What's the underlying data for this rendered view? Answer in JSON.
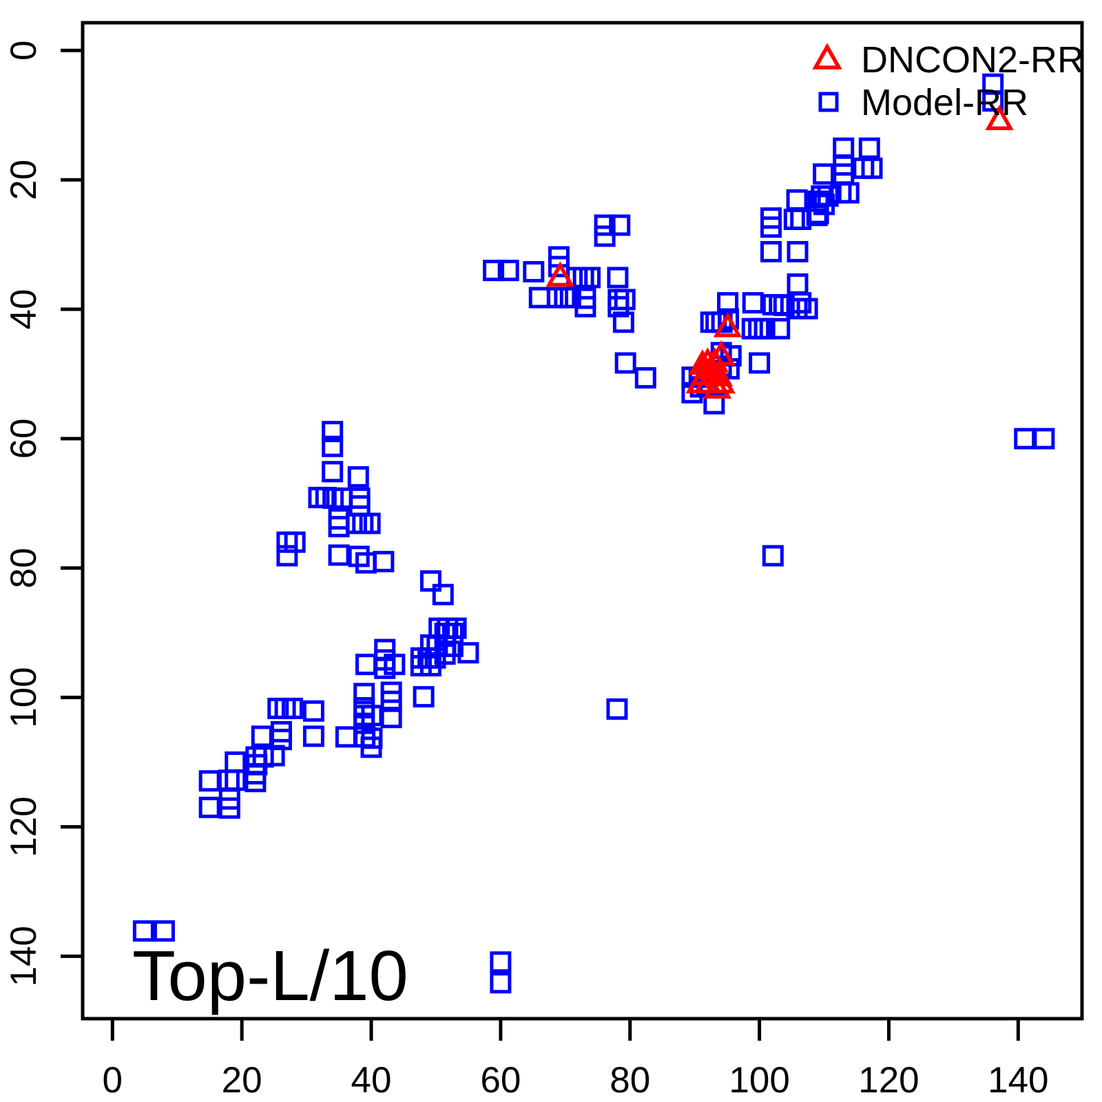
{
  "figure": {
    "background": "#ffffff",
    "annotation": "Top-L/10"
  },
  "legend": {
    "position": "top-right",
    "items": [
      {
        "label": "DNCON2-RR",
        "marker": "triangle",
        "color": "#ff0000"
      },
      {
        "label": "Model-RR",
        "marker": "square",
        "color": "#0000ff"
      }
    ]
  },
  "chart_data": {
    "type": "scatter",
    "title": "",
    "xlabel": "",
    "ylabel": "",
    "grid": false,
    "x_ticks": [
      0,
      20,
      40,
      60,
      80,
      100,
      120,
      140
    ],
    "y_ticks": [
      0,
      20,
      40,
      60,
      80,
      100,
      120,
      140
    ],
    "xlim": [
      -5,
      150
    ],
    "ylim": [
      150,
      -5
    ],
    "y_axis_inverted": true,
    "annotation_text": "Top-L/10",
    "series": [
      {
        "name": "Model-RR",
        "marker": "square",
        "color": "#0000ff",
        "points": [
          [
            136.1,
            5.2
          ],
          [
            136.1,
            7.8
          ],
          [
            113,
            15.1
          ],
          [
            117,
            15.1
          ],
          [
            113,
            17.7
          ],
          [
            113,
            19.1
          ],
          [
            116.1,
            18.2
          ],
          [
            117.4,
            18.2
          ],
          [
            109.9,
            19.1
          ],
          [
            109.6,
            22.5
          ],
          [
            110.6,
            22.5
          ],
          [
            109.1,
            23.3
          ],
          [
            110,
            23.8
          ],
          [
            112.6,
            22
          ],
          [
            113.8,
            22
          ],
          [
            105.8,
            23.1
          ],
          [
            109.1,
            25.2
          ],
          [
            101.8,
            25.9
          ],
          [
            101.8,
            27.3
          ],
          [
            105.4,
            26.1
          ],
          [
            106.4,
            26.1
          ],
          [
            108.9,
            25.5
          ],
          [
            101.8,
            31.1
          ],
          [
            105.9,
            31.1
          ],
          [
            105.9,
            36.1
          ],
          [
            95.1,
            39
          ],
          [
            99,
            39
          ],
          [
            102.1,
            39.3
          ],
          [
            103.1,
            39.3
          ],
          [
            103.8,
            39.4
          ],
          [
            106.4,
            39
          ],
          [
            107.4,
            39.9
          ],
          [
            105.8,
            39.9
          ],
          [
            92.5,
            42
          ],
          [
            93.3,
            42
          ],
          [
            94.2,
            42
          ],
          [
            95.2,
            41.5
          ],
          [
            98.9,
            43
          ],
          [
            99.9,
            43
          ],
          [
            100.8,
            43
          ],
          [
            103.1,
            43
          ],
          [
            94.1,
            46.7
          ],
          [
            95.6,
            47.2
          ],
          [
            94.1,
            48.8
          ],
          [
            95.3,
            49.2
          ],
          [
            100,
            48.3
          ],
          [
            89.6,
            50.5
          ],
          [
            90.7,
            50.5
          ],
          [
            90.9,
            52
          ],
          [
            89.6,
            52.9
          ],
          [
            91.9,
            51.8
          ],
          [
            93,
            54.6
          ],
          [
            79.3,
            48.3
          ],
          [
            82.4,
            50.6
          ],
          [
            76.1,
            27
          ],
          [
            78.4,
            27
          ],
          [
            76.1,
            28.7
          ],
          [
            58.9,
            34
          ],
          [
            61.2,
            34
          ],
          [
            65.1,
            34.2
          ],
          [
            69,
            31.9
          ],
          [
            69,
            33.4
          ],
          [
            71.8,
            35.1
          ],
          [
            72.8,
            35.1
          ],
          [
            73.8,
            35.1
          ],
          [
            78.1,
            35.1
          ],
          [
            66,
            38.2
          ],
          [
            68.8,
            38.2
          ],
          [
            69.9,
            38.2
          ],
          [
            70.8,
            38.2
          ],
          [
            73.1,
            38.3
          ],
          [
            73.1,
            39.6
          ],
          [
            78.2,
            38.5
          ],
          [
            79.2,
            38.5
          ],
          [
            78.2,
            39.6
          ],
          [
            79,
            42
          ],
          [
            141,
            60
          ],
          [
            144,
            60
          ],
          [
            102.1,
            78.1
          ],
          [
            78,
            101.8
          ],
          [
            34,
            58.9
          ],
          [
            34,
            61.2
          ],
          [
            34,
            65.1
          ],
          [
            38,
            65.9
          ],
          [
            31.9,
            69.1
          ],
          [
            33,
            69.1
          ],
          [
            34.1,
            69.2
          ],
          [
            35.5,
            69.2
          ],
          [
            38.2,
            69.2
          ],
          [
            38.2,
            70.4
          ],
          [
            35,
            72.4
          ],
          [
            35,
            73.6
          ],
          [
            37.7,
            73.1
          ],
          [
            38.7,
            73.1
          ],
          [
            39.8,
            73.1
          ],
          [
            27,
            76
          ],
          [
            28.2,
            76
          ],
          [
            27,
            78.1
          ],
          [
            35,
            78
          ],
          [
            38.1,
            78.2
          ],
          [
            39.2,
            79.2
          ],
          [
            41.9,
            79
          ],
          [
            49.2,
            82
          ],
          [
            51.1,
            84.1
          ],
          [
            50.5,
            89.3
          ],
          [
            51.8,
            89.3
          ],
          [
            53.1,
            89.3
          ],
          [
            51.4,
            90.1
          ],
          [
            52.6,
            90.1
          ],
          [
            49.2,
            91.9
          ],
          [
            50.2,
            91.9
          ],
          [
            51.5,
            92.1
          ],
          [
            52.6,
            92.1
          ],
          [
            51.4,
            93.3
          ],
          [
            47.7,
            93.9
          ],
          [
            48.8,
            93.9
          ],
          [
            49.9,
            93.9
          ],
          [
            47.7,
            95.1
          ],
          [
            49.2,
            95.1
          ],
          [
            55,
            93.1
          ],
          [
            42.1,
            92.6
          ],
          [
            42.1,
            94.2
          ],
          [
            42.1,
            95.5
          ],
          [
            39.2,
            94.9
          ],
          [
            43.6,
            94.9
          ],
          [
            38.9,
            99.4
          ],
          [
            43.1,
            99.2
          ],
          [
            43.1,
            100.6
          ],
          [
            48.1,
            99.9
          ],
          [
            38.9,
            101.6
          ],
          [
            25.6,
            101.7
          ],
          [
            26.7,
            101.7
          ],
          [
            27.8,
            101.7
          ],
          [
            31.1,
            102.1
          ],
          [
            38.9,
            102.8
          ],
          [
            40.1,
            102.8
          ],
          [
            38.9,
            104
          ],
          [
            43.1,
            103.1
          ],
          [
            23.1,
            106
          ],
          [
            26.1,
            105.3
          ],
          [
            26.1,
            106.5
          ],
          [
            31.1,
            106
          ],
          [
            36.1,
            106.1
          ],
          [
            39,
            106.1
          ],
          [
            40.1,
            106.3
          ],
          [
            40,
            107.7
          ],
          [
            22.2,
            109.2
          ],
          [
            23.3,
            109.2
          ],
          [
            22.3,
            110.4
          ],
          [
            25,
            109
          ],
          [
            19,
            110
          ],
          [
            15,
            112.9
          ],
          [
            18,
            112.8
          ],
          [
            19,
            112.8
          ],
          [
            22.1,
            111.8
          ],
          [
            22.1,
            113
          ],
          [
            15,
            117
          ],
          [
            18.1,
            115.7
          ],
          [
            18.1,
            117.1
          ],
          [
            4.8,
            136.1
          ],
          [
            8,
            136.1
          ],
          [
            60,
            140.9
          ],
          [
            60,
            144.1
          ]
        ]
      },
      {
        "name": "DNCON2-RR",
        "marker": "triangle",
        "color": "#ff0000",
        "points": [
          [
            69.2,
            35
          ],
          [
            95.1,
            42.8
          ],
          [
            94.1,
            47.2
          ],
          [
            93.1,
            48.3
          ],
          [
            92,
            48.3
          ],
          [
            91.2,
            48.6
          ],
          [
            92.5,
            49.3
          ],
          [
            92.8,
            50.2
          ],
          [
            91.5,
            50.2
          ],
          [
            93.7,
            50.4
          ],
          [
            92,
            51.5
          ],
          [
            90.8,
            51.5
          ],
          [
            94.1,
            51.5
          ],
          [
            93.5,
            52.3
          ],
          [
            137.1,
            10.8
          ]
        ]
      }
    ]
  }
}
